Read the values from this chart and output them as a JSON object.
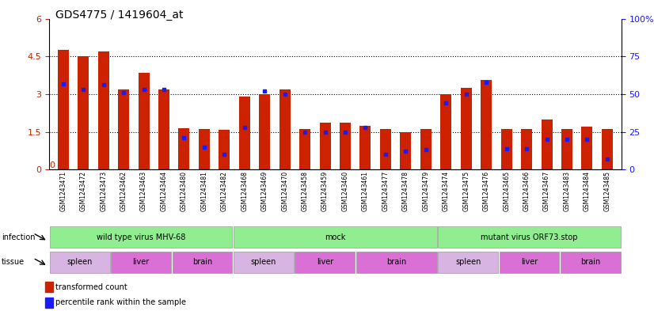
{
  "title": "GDS4775 / 1419604_at",
  "samples": [
    "GSM1243471",
    "GSM1243472",
    "GSM1243473",
    "GSM1243462",
    "GSM1243463",
    "GSM1243464",
    "GSM1243480",
    "GSM1243481",
    "GSM1243482",
    "GSM1243468",
    "GSM1243469",
    "GSM1243470",
    "GSM1243458",
    "GSM1243459",
    "GSM1243460",
    "GSM1243461",
    "GSM1243477",
    "GSM1243478",
    "GSM1243479",
    "GSM1243474",
    "GSM1243475",
    "GSM1243476",
    "GSM1243465",
    "GSM1243466",
    "GSM1243467",
    "GSM1243483",
    "GSM1243484",
    "GSM1243485"
  ],
  "transformed_count": [
    4.75,
    4.5,
    4.7,
    3.2,
    3.85,
    3.2,
    1.65,
    1.62,
    1.58,
    2.9,
    3.0,
    3.2,
    1.6,
    1.85,
    1.85,
    1.75,
    1.62,
    1.5,
    1.62,
    3.0,
    3.25,
    3.55,
    1.62,
    1.62,
    2.0,
    1.62,
    1.72,
    1.6
  ],
  "percentile_rank": [
    57,
    53,
    56,
    51,
    53,
    53,
    21,
    15,
    10,
    28,
    52,
    50,
    25,
    25,
    25,
    28,
    10,
    12,
    13,
    44,
    50,
    58,
    14,
    14,
    20,
    20,
    20,
    7
  ],
  "infection_groups": [
    {
      "label": "wild type virus MHV-68",
      "start": 0,
      "end": 9,
      "color": "#90ee90"
    },
    {
      "label": "mock",
      "start": 9,
      "end": 19,
      "color": "#90ee90"
    },
    {
      "label": "mutant virus ORF73.stop",
      "start": 19,
      "end": 28,
      "color": "#90ee90"
    }
  ],
  "tissue_groups": [
    {
      "label": "spleen",
      "start": 0,
      "end": 3,
      "color": "#d8b4e2"
    },
    {
      "label": "liver",
      "start": 3,
      "end": 6,
      "color": "#da70d6"
    },
    {
      "label": "brain",
      "start": 6,
      "end": 9,
      "color": "#da70d6"
    },
    {
      "label": "spleen",
      "start": 9,
      "end": 12,
      "color": "#d8b4e2"
    },
    {
      "label": "liver",
      "start": 12,
      "end": 15,
      "color": "#da70d6"
    },
    {
      "label": "brain",
      "start": 15,
      "end": 19,
      "color": "#da70d6"
    },
    {
      "label": "spleen",
      "start": 19,
      "end": 22,
      "color": "#d8b4e2"
    },
    {
      "label": "liver",
      "start": 22,
      "end": 25,
      "color": "#da70d6"
    },
    {
      "label": "brain",
      "start": 25,
      "end": 28,
      "color": "#da70d6"
    }
  ],
  "ylim_left": [
    0,
    6
  ],
  "ylim_right": [
    0,
    100
  ],
  "yticks_left": [
    0,
    1.5,
    3.0,
    4.5,
    6.0
  ],
  "yticks_right": [
    0,
    25,
    50,
    75,
    100
  ],
  "bar_color": "#cc2200",
  "marker_color": "#1a1aff",
  "infection_color": "#90ee90",
  "spleen_color": "#d8b4e2",
  "liver_color": "#da70d6",
  "brain_color": "#da70d6",
  "title_fontsize": 10,
  "label_fontsize": 7,
  "tick_fontsize": 6,
  "ann_fontsize": 7
}
